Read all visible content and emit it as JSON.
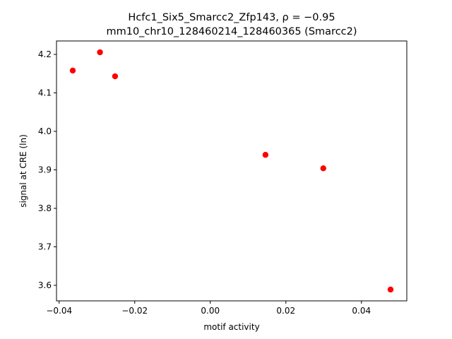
{
  "chart_data": {
    "type": "scatter",
    "title": "Hcfc1_Six5_Smarcc2_Zfp143, ρ = −0.95",
    "subtitle": "mm10_chr10_128460214_128460365 (Smarcc2)",
    "x_label": "motif activity",
    "y_label": "signal at CRE (ln)",
    "series": [
      {
        "color": "#ff0000",
        "x": [
          -0.0364,
          -0.0292,
          -0.0252,
          0.0146,
          0.0299,
          0.0477
        ],
        "values": [
          4.158,
          4.2055,
          4.143,
          3.939,
          3.904,
          3.589
        ]
      }
    ],
    "xlim": [
      -0.0407,
      0.052
    ],
    "xticks": [
      {
        "value": -0.04,
        "label": "−0.04"
      },
      {
        "value": -0.02,
        "label": "−0.02"
      },
      {
        "value": 0,
        "label": "0.00"
      },
      0.02,
      0.04
    ],
    "ylim": [
      3.5596,
      4.2349
    ],
    "yticks": [
      3.6,
      3.7,
      3.8,
      3.9,
      {
        "value": 4,
        "label": "4.0"
      },
      4.1,
      4.2
    ],
    "grid": false
  }
}
